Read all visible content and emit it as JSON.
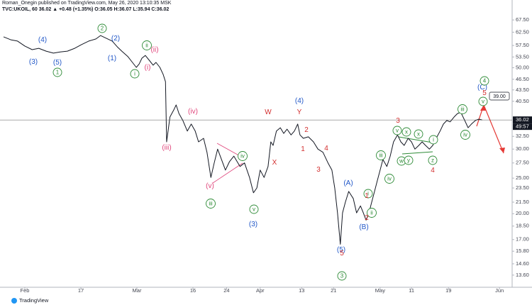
{
  "header": {
    "author_line": "Roman_Onegin published on TradingView.com, May 26, 2020 13:10:35 MSK",
    "symbol_line": "TVC:UKOIL, 60  36.02 ▲ +0.48 (+1.35%) O:36.05 H:36.07 L:35.94 C:36.02"
  },
  "footer": {
    "logo": "TradingView"
  },
  "chart_data": {
    "type": "line",
    "log_scale": true,
    "grid": false,
    "series": [
      {
        "name": "TVC:UKOIL",
        "color": "#131722",
        "x": [
          -3.8,
          -2.5,
          -1.3,
          0,
          1.3,
          2.5,
          3.8,
          5.1,
          6.3,
          7.6,
          8.9,
          10.1,
          11.4,
          12.7,
          13.5,
          14.6,
          15.6,
          16.5,
          17.3,
          18.4,
          19.2,
          19.9,
          20.4,
          20.9,
          21.5,
          22.2,
          22.9,
          23.4,
          24.1,
          24.7,
          25.1,
          25.3,
          25.9,
          26.6,
          27.0,
          27.5,
          28.2,
          29.0,
          29.7,
          30.4,
          31.0,
          31.9,
          32.5,
          33.2,
          33.8,
          34.4,
          35.1,
          35.8,
          36.5,
          37.3,
          38.4,
          39.2,
          40.1,
          40.8,
          41.4,
          42.0,
          42.7,
          43.4,
          43.9,
          44.3,
          44.9,
          45.6,
          46.2,
          46.8,
          47.5,
          48.1,
          48.7,
          49.1,
          49.7,
          50.6,
          51.5,
          52.3,
          53.2,
          54.1,
          54.8,
          55.3,
          55.8,
          56.3,
          56.7,
          57.2,
          57.8,
          58.6,
          59.2,
          59.9,
          60.4,
          60.9,
          61.4,
          61.9,
          62.4,
          62.9,
          63.4,
          63.9,
          64.6,
          65.2,
          65.8,
          66.5,
          67.1,
          67.7,
          68.4,
          69.0,
          69.6,
          70.3,
          70.9,
          71.5,
          72.2,
          72.8,
          73.4,
          74.1,
          74.7,
          75.3,
          75.9,
          76.6,
          77.2,
          77.8,
          78.5,
          79.1,
          79.7,
          80.4,
          81.0,
          81.6
        ],
        "values": [
          60.7,
          59.6,
          59.1,
          57.3,
          56.0,
          56.5,
          55.5,
          54.8,
          55.2,
          55.5,
          56.5,
          57.8,
          59.1,
          59.9,
          61.2,
          60.1,
          59.1,
          57.0,
          55.5,
          53.6,
          51.7,
          50.1,
          51.2,
          53.1,
          54.0,
          52.4,
          50.8,
          51.7,
          50.1,
          47.9,
          45.8,
          31.4,
          36.7,
          38.4,
          39.6,
          37.5,
          35.9,
          33.6,
          35.1,
          33.6,
          31.4,
          32.1,
          29.4,
          25.1,
          27.5,
          30.0,
          28.1,
          26.3,
          27.7,
          28.7,
          26.9,
          27.5,
          25.1,
          22.8,
          23.5,
          26.3,
          25.1,
          26.9,
          31.4,
          30.7,
          33.6,
          34.3,
          33.1,
          34.0,
          32.8,
          33.6,
          35.1,
          32.8,
          32.1,
          32.4,
          31.4,
          30.0,
          29.4,
          27.5,
          26.3,
          23.5,
          20.1,
          16.5,
          20.1,
          21.5,
          23.0,
          22.0,
          20.1,
          21.0,
          20.1,
          19.2,
          20.1,
          21.5,
          23.0,
          24.6,
          26.3,
          28.1,
          26.9,
          28.7,
          31.4,
          32.8,
          31.4,
          30.7,
          32.1,
          31.4,
          30.0,
          30.7,
          31.4,
          30.7,
          30.0,
          30.7,
          32.1,
          33.6,
          35.1,
          35.9,
          35.6,
          36.7,
          37.5,
          37.8,
          35.9,
          34.3,
          35.1,
          35.9,
          36.2,
          36.02
        ]
      }
    ],
    "xlim": [
      -4.43,
      86.96
    ],
    "xticks": [
      {
        "value": 0,
        "label": "Feb"
      },
      {
        "value": 10,
        "label": "17"
      },
      {
        "value": 20,
        "label": "Mar"
      },
      {
        "value": 30,
        "label": "16"
      },
      {
        "value": 36,
        "label": "24"
      },
      {
        "value": 42,
        "label": "Apr"
      },
      {
        "value": 49.4,
        "label": "13"
      },
      {
        "value": 55.1,
        "label": "21"
      },
      {
        "value": 63.4,
        "label": "May"
      },
      {
        "value": 69,
        "label": "11"
      },
      {
        "value": 75.6,
        "label": "19"
      },
      {
        "value": 84.7,
        "label": "Jun"
      }
    ],
    "ylim": [
      12.6,
      76.5
    ],
    "yticks": [
      {
        "value": 67.5,
        "label": "67.50"
      },
      {
        "value": 62.5,
        "label": "62.50"
      },
      {
        "value": 57.5,
        "label": "57.50"
      },
      {
        "value": 53.5,
        "label": "53.50"
      },
      {
        "value": 50,
        "label": "50.00"
      },
      {
        "value": 46.5,
        "label": "46.50"
      },
      {
        "value": 43.5,
        "label": "43.50"
      },
      {
        "value": 40.5,
        "label": "40.50"
      },
      {
        "value": 32.5,
        "label": "32.50"
      },
      {
        "value": 30,
        "label": "30.00"
      },
      {
        "value": 27.5,
        "label": "27.50"
      },
      {
        "value": 25,
        "label": "25.00"
      },
      {
        "value": 23.5,
        "label": "23.50"
      },
      {
        "value": 21.5,
        "label": "21.50"
      },
      {
        "value": 20,
        "label": "20.00"
      },
      {
        "value": 18.5,
        "label": "18.50"
      },
      {
        "value": 17,
        "label": "17.00"
      },
      {
        "value": 15.8,
        "label": "15.80"
      },
      {
        "value": 14.6,
        "label": "14.60"
      },
      {
        "value": 13.6,
        "label": "13.60"
      }
    ],
    "price_badge": "36.02",
    "countdown": "49:57",
    "target_badge": "39.00",
    "annotations": [
      {
        "text": "(4)",
        "color": "#2157c8",
        "circled": false
      },
      {
        "text": "(3)",
        "color": "#2157c8",
        "circled": false
      },
      {
        "text": "(5)",
        "color": "#2157c8",
        "circled": false
      },
      {
        "text": "(2)",
        "color": "#2157c8",
        "circled": false
      },
      {
        "text": "(1)",
        "color": "#2157c8",
        "circled": false
      },
      {
        "text": "(4)",
        "color": "#2157c8",
        "circled": false
      },
      {
        "text": "(3)",
        "color": "#2157c8",
        "circled": false
      },
      {
        "text": "(A)",
        "color": "#2157c8",
        "circled": false
      },
      {
        "text": "(B)",
        "color": "#2157c8",
        "circled": false
      },
      {
        "text": "(5)",
        "color": "#2157c8",
        "circled": false
      },
      {
        "text": "(C)",
        "color": "#2157c8",
        "circled": false
      },
      {
        "text": "2",
        "color": "#2e8b37",
        "circled": true
      },
      {
        "text": "1",
        "color": "#2e8b37",
        "circled": true
      },
      {
        "text": "ii",
        "color": "#2e8b37",
        "circled": true
      },
      {
        "text": "i",
        "color": "#2e8b37",
        "circled": true
      },
      {
        "text": "iii",
        "color": "#2e8b37",
        "circled": true
      },
      {
        "text": "v",
        "color": "#2e8b37",
        "circled": true
      },
      {
        "text": "iv",
        "color": "#2e8b37",
        "circled": true
      },
      {
        "text": "3",
        "color": "#2e8b37",
        "circled": true
      },
      {
        "text": "4",
        "color": "#2e8b37",
        "circled": true
      },
      {
        "text": "i",
        "color": "#2e8b37",
        "circled": true
      },
      {
        "text": "ii",
        "color": "#2e8b37",
        "circled": true
      },
      {
        "text": "iii",
        "color": "#2e8b37",
        "circled": true
      },
      {
        "text": "iv",
        "color": "#2e8b37",
        "circled": true
      },
      {
        "text": "v",
        "color": "#2e8b37",
        "circled": true
      },
      {
        "text": "x",
        "color": "#2e8b37",
        "circled": true
      },
      {
        "text": "x",
        "color": "#2e8b37",
        "circled": true
      },
      {
        "text": "w",
        "color": "#2e8b37",
        "circled": true
      },
      {
        "text": "y",
        "color": "#2e8b37",
        "circled": true
      },
      {
        "text": "z",
        "color": "#2e8b37",
        "circled": true
      },
      {
        "text": "i",
        "color": "#2e8b37",
        "circled": true
      },
      {
        "text": "iii",
        "color": "#2e8b37",
        "circled": true
      },
      {
        "text": "iv",
        "color": "#2e8b37",
        "circled": true
      },
      {
        "text": "v",
        "color": "#2e8b37",
        "circled": true
      },
      {
        "text": "(ii)",
        "color": "#e0457b",
        "circled": false
      },
      {
        "text": "(i)",
        "color": "#e0457b",
        "circled": false
      },
      {
        "text": "(iv)",
        "color": "#e0457b",
        "circled": false
      },
      {
        "text": "(iii)",
        "color": "#e0457b",
        "circled": false
      },
      {
        "text": "(v)",
        "color": "#e0457b",
        "circled": false
      },
      {
        "text": "W",
        "color": "#d32f2f",
        "circled": false
      },
      {
        "text": "Y",
        "color": "#d32f2f",
        "circled": false
      },
      {
        "text": "X",
        "color": "#d32f2f",
        "circled": false
      },
      {
        "text": "1",
        "color": "#d32f2f",
        "circled": false
      },
      {
        "text": "2",
        "color": "#d32f2f",
        "circled": false
      },
      {
        "text": "3",
        "color": "#d32f2f",
        "circled": false
      },
      {
        "text": "4",
        "color": "#d32f2f",
        "circled": false
      },
      {
        "text": "5",
        "color": "#d32f2f",
        "circled": false
      },
      {
        "text": "1",
        "color": "#d32f2f",
        "circled": false
      },
      {
        "text": "2",
        "color": "#d32f2f",
        "circled": false
      },
      {
        "text": "3",
        "color": "#d32f2f",
        "circled": false
      },
      {
        "text": "4",
        "color": "#d32f2f",
        "circled": false
      },
      {
        "text": "5",
        "color": "#d32f2f",
        "circled": false
      }
    ]
  }
}
